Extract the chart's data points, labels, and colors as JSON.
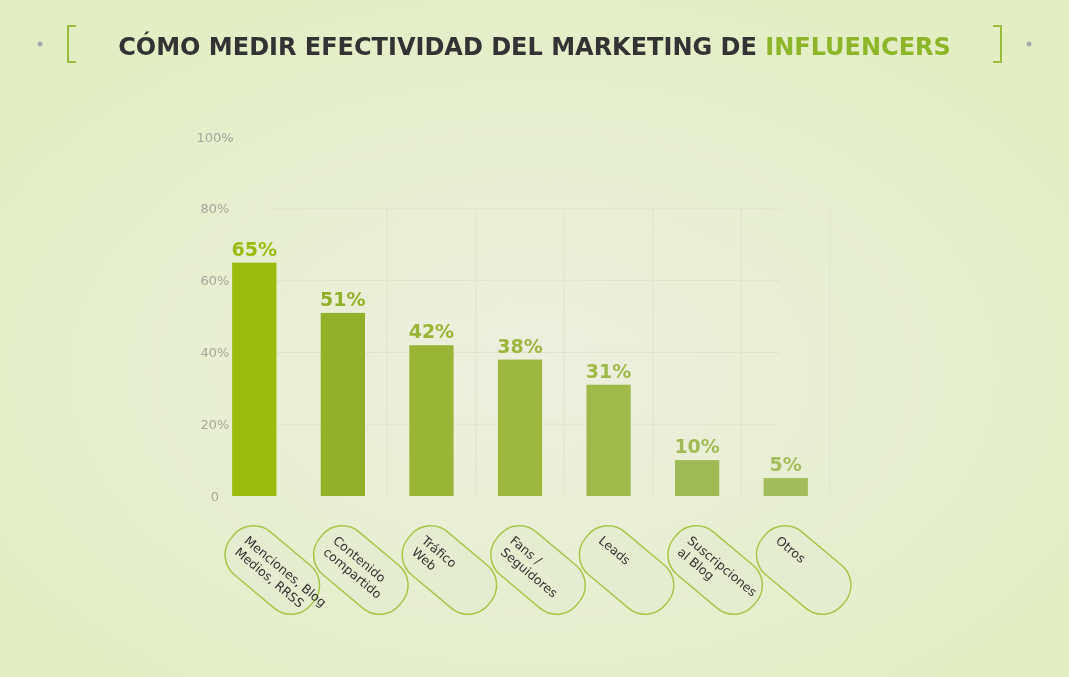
{
  "chart_data": {
    "type": "bar",
    "title": "CÓMO MEDIR EFECTIVIDAD DEL MARKETING DE INFLUENCERS",
    "categories": [
      "Menciones, Blog\nMedios, RRSS",
      "Contenido\ncompartido",
      "Tráfico\nWeb",
      "Fans /\nSeguidores",
      "Leads",
      "Suscripciones\nal Blog",
      "Otros"
    ],
    "values": [
      65,
      51,
      42,
      38,
      31,
      10,
      5
    ],
    "colors": [
      "#9bbb0e",
      "#93b02a",
      "#9ab535",
      "#9db63e",
      "#9fb94a",
      "#a0bb55",
      "#a3bc5c"
    ],
    "value_labels": [
      "65%",
      "51%",
      "42%",
      "38%",
      "31%",
      "10%",
      "5%"
    ],
    "ylim": [
      0,
      100
    ],
    "yticks": [
      0,
      {
        "value": 20,
        "label": "20%"
      },
      {
        "value": 40,
        "label": "40%"
      },
      {
        "value": 60,
        "label": "60%"
      },
      {
        "value": 80,
        "label": "80%"
      },
      {
        "value": 100,
        "label": "100%"
      }
    ],
    "grid": true
  }
}
